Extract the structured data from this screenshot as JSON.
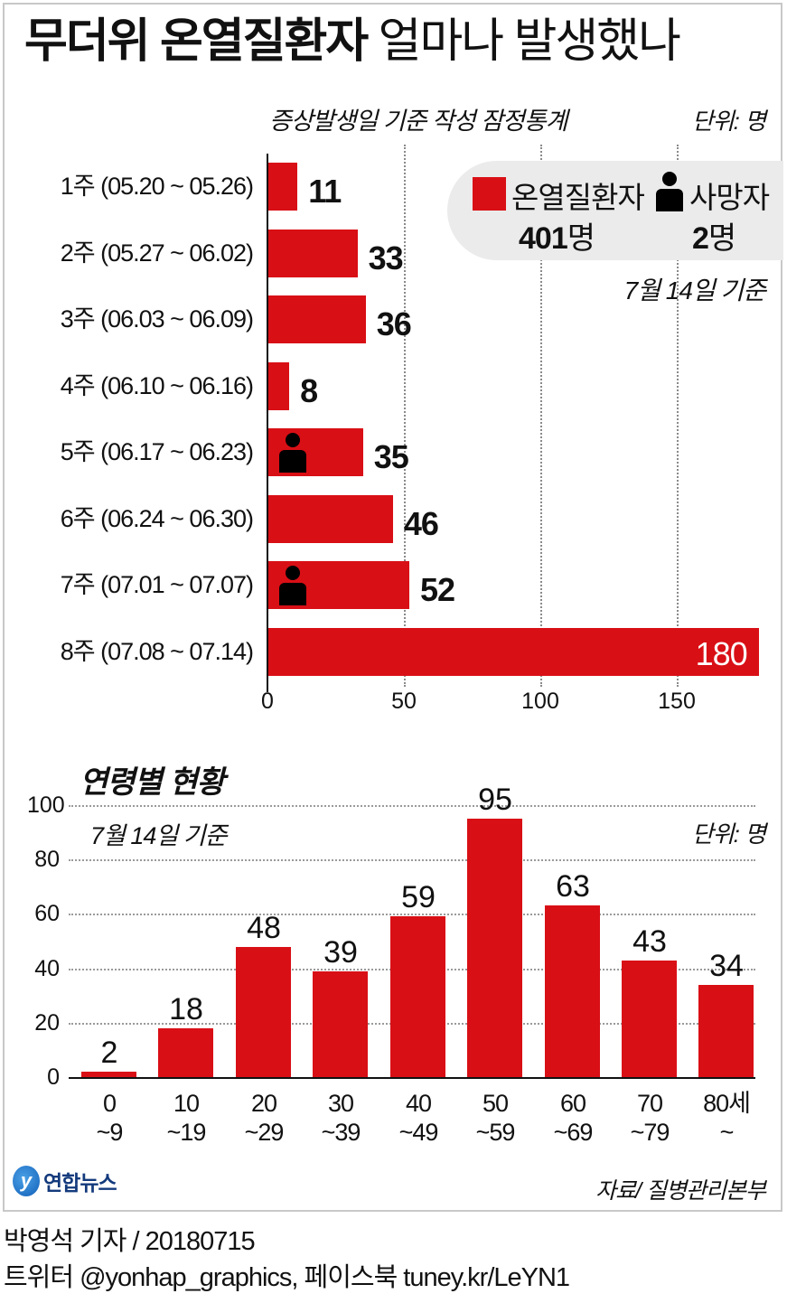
{
  "header": {
    "title_bold": "무더위 온열질환자",
    "title_light": "얼마나 발생했나",
    "subtitle": "증상발생일 기준 작성 잠정통계",
    "unit": "단위: 명"
  },
  "legend": {
    "patients_label": "온열질환자",
    "patients_count": "401",
    "deaths_label": "사망자",
    "deaths_count": "2",
    "count_unit": "명",
    "basis_date": "7월 14일 기준",
    "colors": {
      "patients": "#d90f16",
      "deaths": "#000000",
      "background": "#ebebeb"
    }
  },
  "age_section": {
    "title": "연령별 현황",
    "basis_date": "7월 14일 기준",
    "unit": "단위: 명"
  },
  "footer": {
    "logo_text": "연합뉴스",
    "logo_mark": "y",
    "source": "자료/ 질병관리본부",
    "author": "박영석 기자 / 20180715",
    "social": "트위터 @yonhap_graphics, 페이스북 tuney.kr/LeYN1"
  },
  "chart_data": [
    {
      "type": "bar",
      "orientation": "horizontal",
      "title": "무더위 온열질환자 얼마나 발생했나",
      "subtitle": "증상발생일 기준 작성 잠정통계",
      "categories": [
        "1주 (05.20 ~ 05.26)",
        "2주 (05.27 ~ 06.02)",
        "3주 (06.03 ~ 06.09)",
        "4주 (06.10 ~ 06.16)",
        "5주 (06.17 ~ 06.23)",
        "6주 (06.24 ~ 06.30)",
        "7주 (07.01 ~ 07.07)",
        "8주 (07.08 ~ 07.14)"
      ],
      "values": [
        11,
        33,
        36,
        8,
        35,
        46,
        52,
        180
      ],
      "death_markers": [
        false,
        false,
        false,
        false,
        true,
        false,
        true,
        false
      ],
      "xticks": [
        "0",
        "50",
        "100",
        "150"
      ],
      "xlim": [
        0,
        180
      ],
      "xlabel": "",
      "ylabel": "",
      "unit": "단위: 명",
      "grid": "vertical dotted",
      "legend": [
        {
          "label": "온열질환자",
          "total": "401명",
          "color": "#d90f16"
        },
        {
          "label": "사망자",
          "total": "2명",
          "icon": "person-icon"
        }
      ],
      "annotation": "7월 14일 기준"
    },
    {
      "type": "bar",
      "orientation": "vertical",
      "title": "연령별 현황",
      "categories": [
        "0 ~9",
        "10 ~19",
        "20 ~29",
        "30 ~39",
        "40 ~49",
        "50 ~59",
        "60 ~69",
        "70 ~79",
        "80세 ~"
      ],
      "category_lines": [
        [
          "0",
          "~9"
        ],
        [
          "10",
          "~19"
        ],
        [
          "20",
          "~29"
        ],
        [
          "30",
          "~39"
        ],
        [
          "40",
          "~49"
        ],
        [
          "50",
          "~59"
        ],
        [
          "60",
          "~69"
        ],
        [
          "70",
          "~79"
        ],
        [
          "80세",
          "~"
        ]
      ],
      "values": [
        2,
        18,
        48,
        39,
        59,
        95,
        63,
        43,
        34
      ],
      "yticks": [
        "0",
        "20",
        "40",
        "60",
        "80",
        "100"
      ],
      "ylim": [
        0,
        100
      ],
      "xlabel": "",
      "ylabel": "",
      "unit": "단위: 명",
      "grid": "horizontal dotted",
      "annotation": "7월 14일 기준",
      "color": "#d90f16"
    }
  ]
}
